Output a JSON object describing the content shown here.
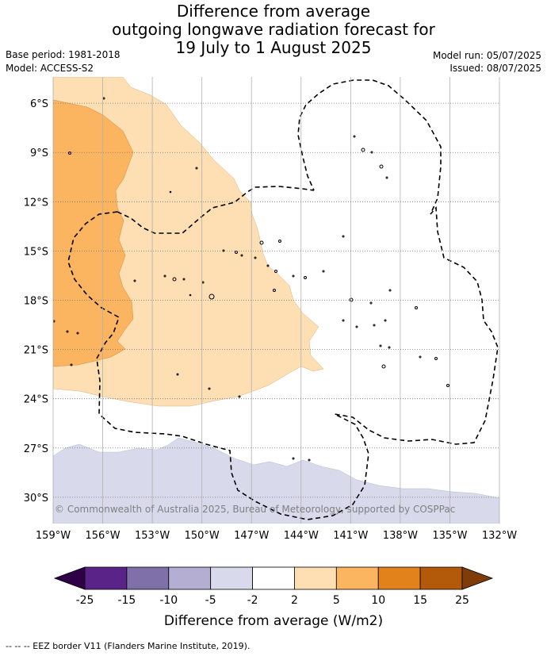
{
  "header": {
    "title_line1": "Difference from average",
    "title_line2": "outgoing longwave radiation forecast for",
    "title_line3": "19 July to 1 August 2025",
    "base_period": "Base period: 1981-2018",
    "model": "Model: ACCESS-S2",
    "model_run": "Model run: 05/07/2025",
    "issued": "Issued: 08/07/2025"
  },
  "copyright": "© Commonwealth of Australia 2025, Bureau of Meteorology, supported by COSPPac",
  "footnote": "--  --  -- EEZ border V11 (Flanders Marine Institute, 2019).",
  "chart_data": {
    "type": "heatmap",
    "title": "Difference from average outgoing longwave radiation forecast for 19 July to 1 August 2025",
    "x_ticks": [
      "159°W",
      "156°W",
      "153°W",
      "150°W",
      "147°W",
      "144°W",
      "141°W",
      "138°W",
      "135°W",
      "132°W"
    ],
    "y_ticks": [
      "6°S",
      "9°S",
      "12°S",
      "15°S",
      "18°S",
      "21°S",
      "24°S",
      "27°S",
      "30°S"
    ],
    "xlim": [
      -159,
      -132
    ],
    "ylim": [
      -31.6,
      -4.4
    ],
    "grid": true,
    "colorbar": {
      "label": "Difference from average (W/m2)",
      "tick_labels": [
        "-25",
        "-15",
        "-10",
        "-5",
        "-2",
        "2",
        "5",
        "10",
        "15",
        "25"
      ],
      "bins": [
        {
          "range": "<-25",
          "color": "#2d0048"
        },
        {
          "range": "-25 to -15",
          "color": "#5a2387"
        },
        {
          "range": "-15 to -10",
          "color": "#8070aa"
        },
        {
          "range": "-10 to -5",
          "color": "#b4aed2"
        },
        {
          "range": "-5 to -2",
          "color": "#d8d9ea"
        },
        {
          "range": "-2 to 2",
          "color": "#ffffff"
        },
        {
          "range": "2 to 5",
          "color": "#fddfb3"
        },
        {
          "range": "5 to 10",
          "color": "#fbb45f"
        },
        {
          "range": "10 to 15",
          "color": "#e1821a"
        },
        {
          "range": "15 to 25",
          "color": "#b25a0a"
        },
        {
          "range": ">25",
          "color": "#7f3b08"
        }
      ]
    },
    "regions": [
      {
        "category": "2 to 5",
        "color": "#fddfb3",
        "lon_range": [
          -159,
          -142.8
        ],
        "lat_range": [
          -24.9,
          -4.4
        ]
      },
      {
        "category": "5 to 10",
        "color": "#fbb45f",
        "lon_range": [
          -159,
          -154.5
        ],
        "lat_range": [
          -22.0,
          -4.4
        ]
      },
      {
        "category": "-5 to -2",
        "color": "#d8d9ea",
        "lon_range": [
          -159,
          -132
        ],
        "lat_range": [
          -31.6,
          -26.7
        ]
      }
    ]
  }
}
